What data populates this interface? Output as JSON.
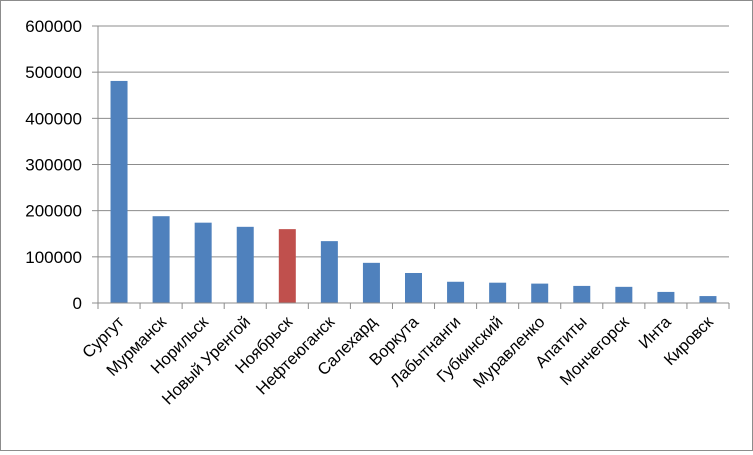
{
  "chart_data": {
    "type": "bar",
    "title": "",
    "xlabel": "",
    "ylabel": "",
    "ylim": [
      0,
      600000
    ],
    "yticks": [
      "0",
      "100000",
      "200000",
      "300000",
      "400000",
      "500000",
      "600000"
    ],
    "grid": true,
    "legend": "none",
    "categories": [
      "Сургут",
      "Мурманск",
      "Норильск",
      "Новый Уренгой",
      "Ноябрьск",
      "Нефтеюганск",
      "Салехард",
      "Воркута",
      "Лабытнанги",
      "Губкинский",
      "Муравленко",
      "Апатиты",
      "Мончегорск",
      "Инта",
      "Кировск"
    ],
    "values": [
      481000,
      188000,
      174000,
      165000,
      160000,
      134000,
      87000,
      65000,
      46000,
      44000,
      42000,
      37000,
      35000,
      24000,
      15000
    ],
    "colors": {
      "default": "#4f81bd",
      "highlight": "#c0504d",
      "highlight_category": "Ноябрьск",
      "gridline": "#8c8c8c"
    }
  }
}
